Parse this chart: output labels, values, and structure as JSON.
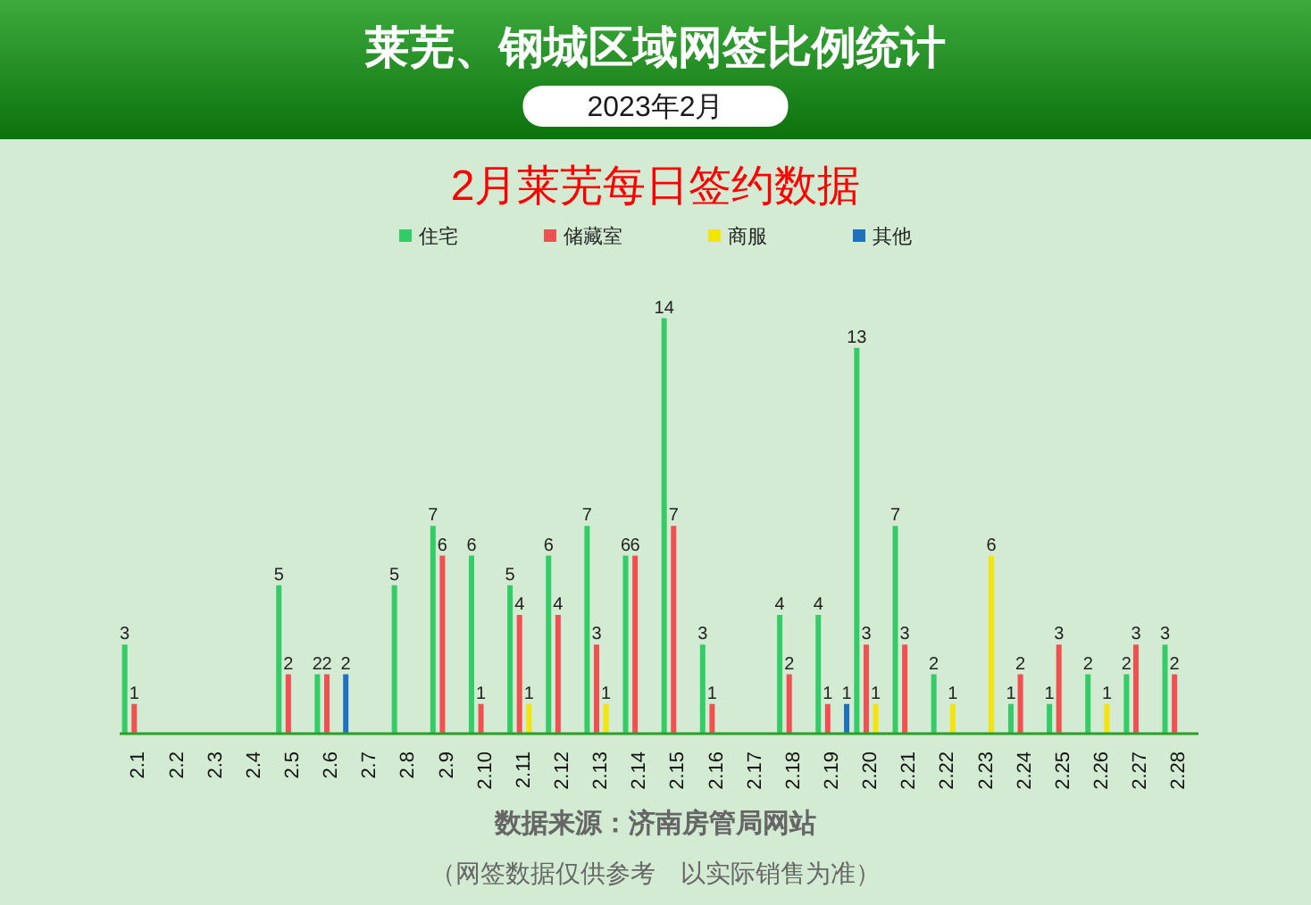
{
  "chart_data": {
    "type": "bar",
    "title": "莱芜、钢城区域网签比例统计",
    "subtitle": "2023年2月",
    "annotations": [
      "2月莱芜每日签约数据",
      "数据来源：济南房管局网站",
      "（网签数据仅供参考　以实际销售为准）"
    ],
    "categories": [
      "2.1",
      "2.2",
      "2.3",
      "2.4",
      "2.5",
      "2.6",
      "2.7",
      "2.8",
      "2.9",
      "2.10",
      "2.11",
      "2.12",
      "2.13",
      "2.14",
      "2.15",
      "2.16",
      "2.17",
      "2.18",
      "2.19",
      "2.20",
      "2.21",
      "2.22",
      "2.23",
      "2.24",
      "2.25",
      "2.26",
      "2.27",
      "2.28"
    ],
    "series": [
      {
        "name": "住宅",
        "color": "#33cc66",
        "values": [
          3,
          0,
          0,
          0,
          5,
          2,
          0,
          5,
          7,
          6,
          5,
          6,
          7,
          6,
          14,
          3,
          0,
          4,
          4,
          13,
          7,
          2,
          0,
          1,
          1,
          2,
          2,
          3
        ],
        "value_labels": [
          "3",
          null,
          null,
          null,
          "5",
          "2",
          null,
          "5",
          "7",
          "6",
          "5",
          "6",
          "7",
          "6",
          "14",
          "3",
          null,
          "4",
          "4",
          "13",
          "7",
          "2",
          null,
          "1",
          "1",
          "2",
          "2",
          "3"
        ]
      },
      {
        "name": "储藏室",
        "color": "#f25050",
        "values": [
          1,
          0,
          0,
          0,
          2,
          2,
          0,
          0,
          6,
          1,
          4,
          4,
          3,
          6,
          7,
          1,
          0,
          2,
          1,
          3,
          3,
          0,
          0,
          2,
          3,
          0,
          3,
          2
        ],
        "value_labels": [
          "1",
          null,
          null,
          null,
          "2",
          "2",
          null,
          null,
          "6",
          "1",
          "4",
          "4",
          "3",
          "6",
          "7",
          "1",
          null,
          "2",
          "1",
          "3",
          "3",
          null,
          null,
          "2",
          "3",
          null,
          "3",
          "2"
        ]
      },
      {
        "name": "商服",
        "color": "#f2e40c",
        "values": [
          0,
          0,
          0,
          0,
          0,
          0,
          0,
          0,
          0,
          0,
          1,
          0,
          1,
          0,
          0,
          0,
          0,
          0,
          0,
          1,
          0,
          1,
          6,
          0,
          0,
          1,
          0,
          0
        ],
        "value_labels": [
          null,
          null,
          null,
          null,
          null,
          null,
          null,
          null,
          null,
          null,
          "1",
          null,
          "1",
          null,
          null,
          null,
          null,
          null,
          null,
          "1",
          null,
          "1",
          "6",
          null,
          null,
          "1",
          null,
          null
        ]
      },
      {
        "name": "其他",
        "color": "#2070c0",
        "values": [
          0,
          0,
          0,
          0,
          0,
          2,
          0,
          0,
          0,
          0,
          0,
          0,
          0,
          0,
          0,
          0,
          0,
          0,
          1,
          0,
          0,
          0,
          0,
          0,
          0,
          0,
          0,
          0
        ],
        "value_labels": [
          null,
          null,
          null,
          null,
          null,
          "2",
          null,
          null,
          null,
          null,
          null,
          null,
          null,
          null,
          null,
          null,
          null,
          null,
          "1",
          null,
          null,
          null,
          null,
          null,
          null,
          null,
          null,
          null
        ]
      }
    ],
    "legend": "top"
  }
}
